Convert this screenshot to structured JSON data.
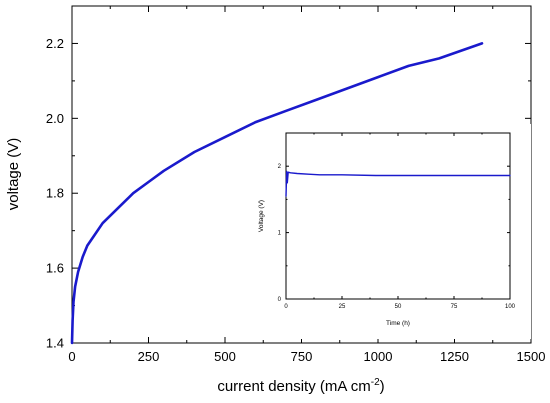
{
  "chart_data": [
    {
      "type": "line",
      "xlabel": "current density (mA cm",
      "xlabel_superscript": "-2",
      "xlabel_suffix": ")",
      "ylabel": "voltage (V)",
      "xlim": [
        0,
        1500
      ],
      "ylim": [
        1.4,
        2.3
      ],
      "x_ticks": [
        0,
        250,
        500,
        750,
        1000,
        1250,
        1500
      ],
      "x_tick_labels": [
        "0",
        "250",
        "500",
        "750",
        "1000",
        "1250",
        "1500"
      ],
      "y_ticks": [
        1.4,
        1.6,
        1.8,
        2.0,
        2.2
      ],
      "y_tick_labels": [
        "1.4",
        "1.6",
        "1.8",
        "2.0",
        "2.2"
      ],
      "grid": false,
      "color": "#1a1acc",
      "series": [
        {
          "x": [
            0,
            2,
            5,
            10,
            20,
            35,
            50,
            75,
            100,
            150,
            200,
            250,
            300,
            400,
            500,
            600,
            700,
            800,
            900,
            1000,
            1100,
            1200,
            1340
          ],
          "y": [
            1.4,
            1.46,
            1.51,
            1.55,
            1.59,
            1.63,
            1.66,
            1.69,
            1.72,
            1.76,
            1.8,
            1.83,
            1.86,
            1.91,
            1.95,
            1.99,
            2.02,
            2.05,
            2.08,
            2.11,
            2.14,
            2.16,
            2.2
          ]
        }
      ]
    },
    {
      "type": "line",
      "inset": true,
      "xlabel": "Time (h)",
      "ylabel": "Voltage (V)",
      "xlim": [
        0,
        100
      ],
      "ylim": [
        0,
        2.5
      ],
      "x_ticks": [
        0,
        25,
        50,
        75,
        100
      ],
      "x_tick_labels": [
        "0",
        "25",
        "50",
        "75",
        "100"
      ],
      "y_ticks": [
        0,
        1,
        2
      ],
      "y_tick_labels": [
        "0",
        "1",
        "2"
      ],
      "grid": false,
      "color": "#1a1acc",
      "series": [
        {
          "x": [
            0,
            0.3,
            0.6,
            1,
            2,
            5,
            10,
            15,
            25,
            40,
            50,
            75,
            100
          ],
          "y": [
            1.55,
            1.92,
            1.75,
            1.91,
            1.9,
            1.89,
            1.88,
            1.87,
            1.87,
            1.86,
            1.86,
            1.86,
            1.86
          ]
        }
      ]
    }
  ]
}
